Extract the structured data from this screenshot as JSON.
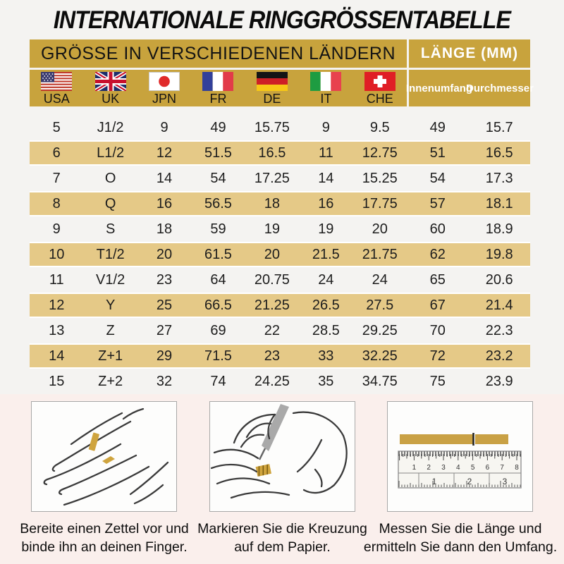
{
  "title": "INTERNATIONALE RINGGRÖSSENTABELLE",
  "table": {
    "group_headers": {
      "sizes": "GRÖSSE IN VERSCHIEDENEN LÄNDERN",
      "length": "LÄNGE (MM)"
    },
    "country_columns": [
      {
        "code": "USA",
        "flag": "usa-flag-icon"
      },
      {
        "code": "UK",
        "flag": "uk-flag-icon"
      },
      {
        "code": "JPN",
        "flag": "japan-flag-icon"
      },
      {
        "code": "FR",
        "flag": "france-flag-icon"
      },
      {
        "code": "DE",
        "flag": "germany-flag-icon"
      },
      {
        "code": "IT",
        "flag": "italy-flag-icon"
      },
      {
        "code": "CHE",
        "flag": "switzerland-flag-icon"
      }
    ],
    "length_columns": [
      "Innenumfang",
      "Durchmesser"
    ],
    "rows": [
      [
        "5",
        "J1/2",
        "9",
        "49",
        "15.75",
        "9",
        "9.5",
        "49",
        "15.7"
      ],
      [
        "6",
        "L1/2",
        "12",
        "51.5",
        "16.5",
        "11",
        "12.75",
        "51",
        "16.5"
      ],
      [
        "7",
        "O",
        "14",
        "54",
        "17.25",
        "14",
        "15.25",
        "54",
        "17.3"
      ],
      [
        "8",
        "Q",
        "16",
        "56.5",
        "18",
        "16",
        "17.75",
        "57",
        "18.1"
      ],
      [
        "9",
        "S",
        "18",
        "59",
        "19",
        "19",
        "20",
        "60",
        "18.9"
      ],
      [
        "10",
        "T1/2",
        "20",
        "61.5",
        "20",
        "21.5",
        "21.75",
        "62",
        "19.8"
      ],
      [
        "11",
        "V1/2",
        "23",
        "64",
        "20.75",
        "24",
        "24",
        "65",
        "20.6"
      ],
      [
        "12",
        "Y",
        "25",
        "66.5",
        "21.25",
        "26.5",
        "27.5",
        "67",
        "21.4"
      ],
      [
        "13",
        "Z",
        "27",
        "69",
        "22",
        "28.5",
        "29.25",
        "70",
        "22.3"
      ],
      [
        "14",
        "Z+1",
        "29",
        "71.5",
        "23",
        "33",
        "32.25",
        "72",
        "23.2"
      ],
      [
        "15",
        "Z+2",
        "32",
        "74",
        "24.25",
        "35",
        "34.75",
        "75",
        "23.9"
      ]
    ]
  },
  "steps": [
    {
      "illustration": "hand-with-paper-strip",
      "caption_lines": [
        "Bereite einen Zettel vor und",
        "binde ihn an deinen Finger."
      ]
    },
    {
      "illustration": "pen-marking-paper",
      "caption_lines": [
        "Markieren Sie die Kreuzung",
        "auf dem Papier."
      ]
    },
    {
      "illustration": "ruler-measuring-strip",
      "caption_lines": [
        "Messen Sie die Länge und",
        "ermitteln Sie dann den Umfang."
      ],
      "ruler": {
        "cm_numbers": [
          "1",
          "2",
          "3",
          "4",
          "5",
          "6",
          "7",
          "8"
        ],
        "inch_numbers": [
          "1",
          "2",
          "3"
        ]
      }
    }
  ],
  "colors": {
    "gold_header": "#C8A33D",
    "tan_row": "#E5C987",
    "page_bg": "#F4F3F1",
    "bottom_bg": "#FAEFEC",
    "strip_gold": "#CFA43E"
  }
}
